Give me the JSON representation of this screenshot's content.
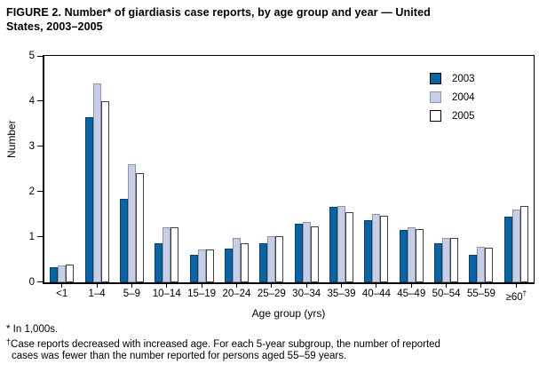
{
  "title_line1": "FIGURE 2. Number* of giardiasis case reports, by age group and year — United",
  "title_line2": "States, 2003–2005",
  "footnotes": {
    "asterisk_note": "* In 1,000s.",
    "dagger_symbol": "†",
    "dagger_line1": "Case reports decreased with increased age. For each 5-year subgroup, the number of reported",
    "dagger_line2": "cases was fewer than the number reported for persons aged 55–59 years."
  },
  "chart_data": {
    "type": "bar",
    "title": "",
    "xlabel": "Age group (yrs)",
    "ylabel": "Number",
    "ylim": [
      0,
      5
    ],
    "yticks": [
      0,
      1,
      2,
      3,
      4,
      5
    ],
    "grid": false,
    "legend_position": "top-right-inside",
    "categories": [
      "<1",
      "1–4",
      "5–9",
      "10–14",
      "15–19",
      "20–24",
      "25–29",
      "30–34",
      "35–39",
      "40–44",
      "45–49",
      "50–54",
      "55–59",
      "≥60†"
    ],
    "series": [
      {
        "name": "2003",
        "color": "#0a64a4",
        "border": "#0a3f68",
        "values": [
          0.33,
          3.65,
          1.85,
          0.87,
          0.61,
          0.75,
          0.87,
          1.29,
          1.66,
          1.38,
          1.15,
          0.86,
          0.61,
          1.45
        ]
      },
      {
        "name": "2004",
        "color": "#c6cfe7",
        "border": "#8d94a5",
        "values": [
          0.37,
          4.4,
          2.6,
          1.21,
          0.72,
          0.98,
          1.01,
          1.34,
          1.68,
          1.5,
          1.22,
          0.99,
          0.79,
          1.61
        ]
      },
      {
        "name": "2005",
        "color": "#ffffff",
        "border": "#3f3f3f",
        "values": [
          0.4,
          4.0,
          2.42,
          1.21,
          0.73,
          0.86,
          1.01,
          1.24,
          1.55,
          1.47,
          1.18,
          0.98,
          0.76,
          1.69
        ]
      }
    ]
  },
  "colors": {
    "axis": "#000000",
    "text": "#000000",
    "background": "#ffffff"
  }
}
